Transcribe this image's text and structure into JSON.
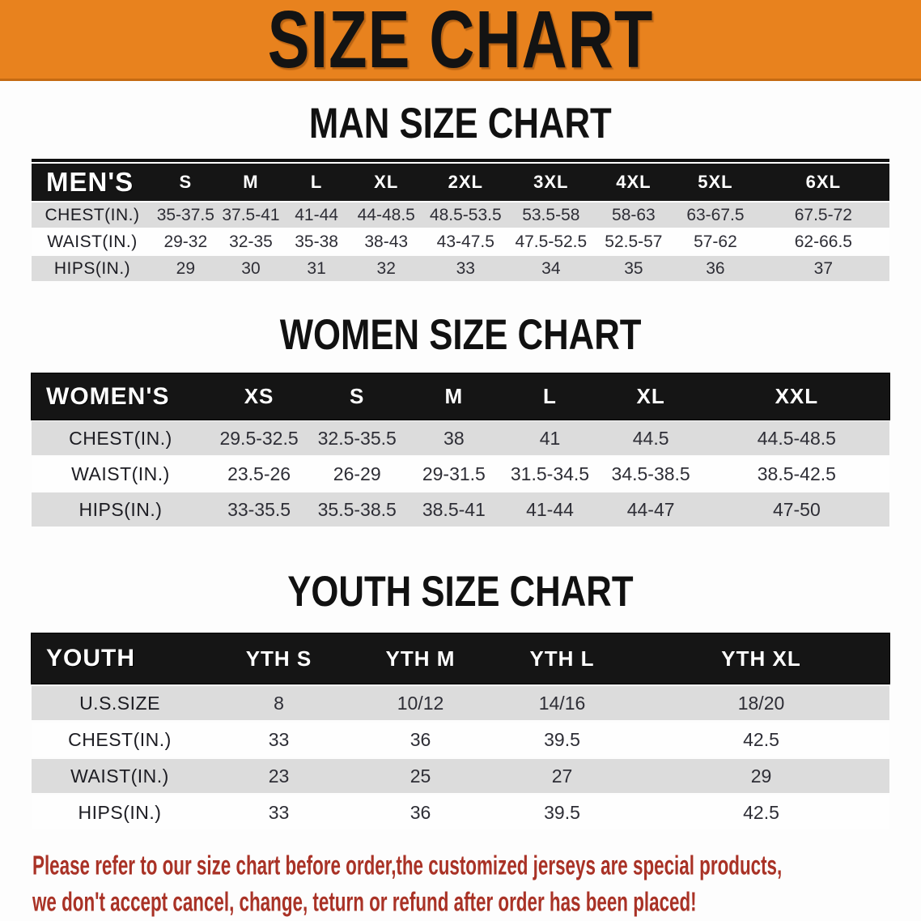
{
  "banner": {
    "title": "SIZE CHART",
    "background_color": "#E8821E"
  },
  "sections": [
    {
      "id": "men",
      "heading": "MAN SIZE CHART",
      "table": {
        "header_label": "MEN'S",
        "sizes": [
          "S",
          "M",
          "L",
          "XL",
          "2XL",
          "3XL",
          "4XL",
          "5XL",
          "6XL"
        ],
        "rows": [
          {
            "label": "CHEST(IN.)",
            "values": [
              "35-37.5",
              "37.5-41",
              "41-44",
              "44-48.5",
              "48.5-53.5",
              "53.5-58",
              "58-63",
              "63-67.5",
              "67.5-72"
            ]
          },
          {
            "label": "WAIST(IN.)",
            "values": [
              "29-32",
              "32-35",
              "35-38",
              "38-43",
              "43-47.5",
              "47.5-52.5",
              "52.5-57",
              "57-62",
              "62-66.5"
            ]
          },
          {
            "label": "HIPS(IN.)",
            "values": [
              "29",
              "30",
              "31",
              "32",
              "33",
              "34",
              "35",
              "36",
              "37"
            ]
          }
        ]
      }
    },
    {
      "id": "women",
      "heading": "WOMEN SIZE CHART",
      "table": {
        "header_label": "WOMEN'S",
        "sizes": [
          "XS",
          "S",
          "M",
          "L",
          "XL",
          "XXL"
        ],
        "rows": [
          {
            "label": "CHEST(IN.)",
            "values": [
              "29.5-32.5",
              "32.5-35.5",
              "38",
              "41",
              "44.5",
              "44.5-48.5"
            ]
          },
          {
            "label": "WAIST(IN.)",
            "values": [
              "23.5-26",
              "26-29",
              "29-31.5",
              "31.5-34.5",
              "34.5-38.5",
              "38.5-42.5"
            ]
          },
          {
            "label": "HIPS(IN.)",
            "values": [
              "33-35.5",
              "35.5-38.5",
              "38.5-41",
              "41-44",
              "44-47",
              "47-50"
            ]
          }
        ]
      }
    },
    {
      "id": "youth",
      "heading": "YOUTH SIZE CHART",
      "table": {
        "header_label": "YOUTH",
        "sizes": [
          "YTH S",
          "YTH M",
          "YTH L",
          "YTH XL"
        ],
        "rows": [
          {
            "label": "U.S.SIZE",
            "values": [
              "8",
              "10/12",
              "14/16",
              "18/20"
            ]
          },
          {
            "label": "CHEST(IN.)",
            "values": [
              "33",
              "36",
              "39.5",
              "42.5"
            ]
          },
          {
            "label": "WAIST(IN.)",
            "values": [
              "23",
              "25",
              "27",
              "29"
            ]
          },
          {
            "label": "HIPS(IN.)",
            "values": [
              "33",
              "36",
              "39.5",
              "42.5"
            ]
          }
        ]
      }
    }
  ],
  "disclaimer": {
    "lines": [
      "Please refer to our size chart before order,the customized jerseys are special products,",
      "we don't accept cancel, change, teturn or refund after order has been placed!"
    ],
    "text_color": "#A93226"
  },
  "colors": {
    "banner_orange": "#E8821E",
    "table_header_black": "#151515",
    "row_stripe_gray": "#DCDCDC"
  }
}
